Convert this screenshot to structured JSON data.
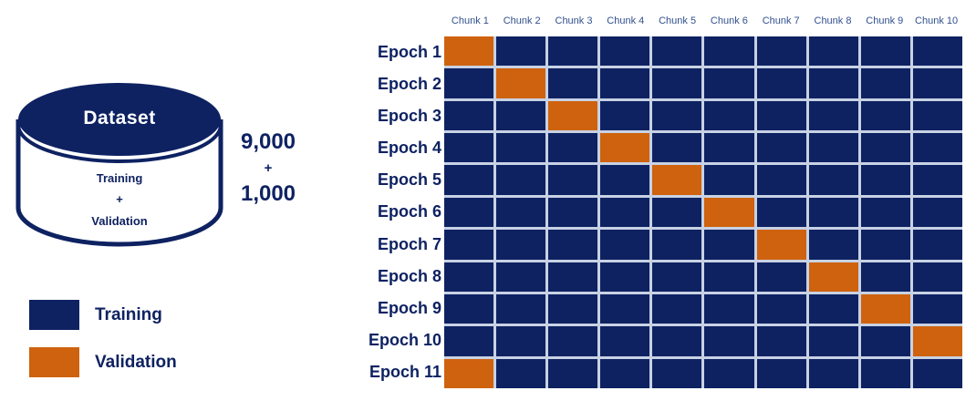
{
  "colors": {
    "navy": "#0E2262",
    "orange": "#CF620E",
    "chunk_label": "#31508E",
    "grid_gap": "#C8D2E4",
    "dataset_title_text": "#FFFFFF"
  },
  "dataset": {
    "title": "Dataset",
    "lines": [
      "Training",
      "+",
      "Validation"
    ]
  },
  "counts": {
    "training_size": "9,000",
    "plus": "+",
    "validation_size": "1,000"
  },
  "legend": [
    {
      "label": "Training",
      "color": "#0E2262"
    },
    {
      "label": "Validation",
      "color": "#CF620E"
    }
  ],
  "chart_data": {
    "type": "heatmap",
    "title": "",
    "columns": [
      "Chunk 1",
      "Chunk 2",
      "Chunk 3",
      "Chunk 4",
      "Chunk 5",
      "Chunk 6",
      "Chunk 7",
      "Chunk 8",
      "Chunk 9",
      "Chunk 10"
    ],
    "rows": [
      "Epoch 1",
      "Epoch 2",
      "Epoch 3",
      "Epoch 4",
      "Epoch 5",
      "Epoch 6",
      "Epoch 7",
      "Epoch 8",
      "Epoch 9",
      "Epoch 10",
      "Epoch 11"
    ],
    "validation_chunk_per_epoch": [
      1,
      2,
      3,
      4,
      5,
      6,
      7,
      8,
      9,
      10,
      1
    ],
    "cell_states": [
      "training",
      "validation"
    ],
    "legend_position": "bottom-left",
    "grid": "on"
  }
}
